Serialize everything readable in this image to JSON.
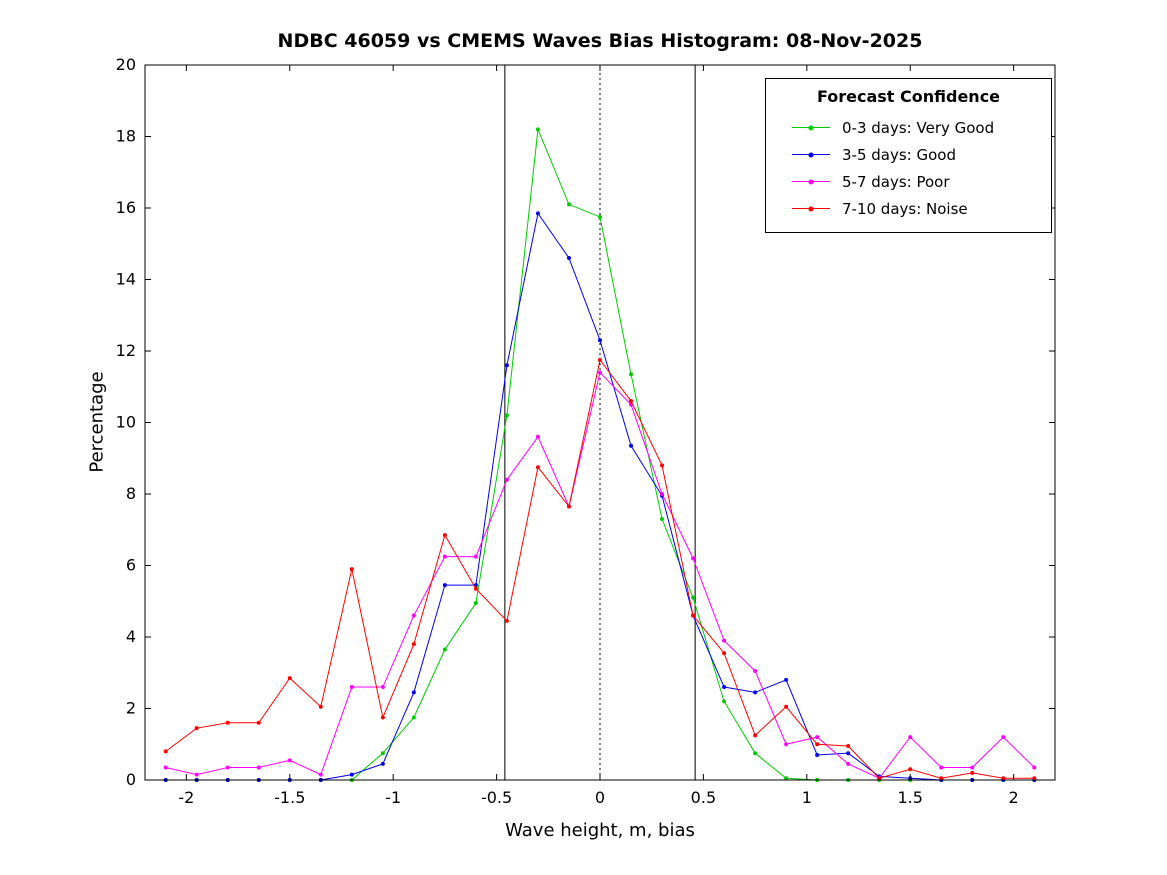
{
  "chart_data": {
    "type": "line",
    "title": "NDBC 46059 vs CMEMS Waves Bias Histogram: 08-Nov-2025",
    "xlabel": "Wave height, m, bias",
    "ylabel": "Percentage",
    "xlim": [
      -2.2,
      2.2
    ],
    "ylim": [
      0,
      20
    ],
    "grid": false,
    "xtick_values": [
      -2,
      -1.5,
      -1,
      -0.5,
      0,
      0.5,
      1,
      1.5,
      2
    ],
    "xtick_labels": [
      "-2",
      "-1.5",
      "-1",
      "-0.5",
      "0",
      "0.5",
      "1",
      "1.5",
      "2"
    ],
    "ytick_values": [
      0,
      2,
      4,
      6,
      8,
      10,
      12,
      14,
      16,
      18,
      20
    ],
    "ytick_labels": [
      "0",
      "2",
      "4",
      "6",
      "8",
      "10",
      "12",
      "14",
      "16",
      "18",
      "20"
    ],
    "reference_lines": [
      {
        "x": -0.46,
        "style": "solid",
        "color": "#000000"
      },
      {
        "x": 0,
        "style": "dotted",
        "color": "#000000"
      },
      {
        "x": 0.46,
        "style": "solid",
        "color": "#000000"
      }
    ],
    "legend": {
      "title": "Forecast Confidence",
      "position": "top-right"
    },
    "x": [
      -2.1,
      -1.95,
      -1.8,
      -1.65,
      -1.5,
      -1.35,
      -1.2,
      -1.05,
      -0.9,
      -0.75,
      -0.6,
      -0.45,
      -0.3,
      -0.15,
      0,
      0.15,
      0.3,
      0.45,
      0.6,
      0.75,
      0.9,
      1.05,
      1.2,
      1.35,
      1.5,
      1.65,
      1.8,
      1.95,
      2.1
    ],
    "series": [
      {
        "name": "0-3 days: Very Good",
        "color": "#00cc00",
        "values": [
          0,
          0,
          0,
          0,
          0,
          0,
          0,
          0.75,
          1.75,
          3.65,
          4.95,
          10.2,
          18.2,
          16.1,
          15.75,
          11.35,
          7.3,
          5.1,
          2.2,
          0.75,
          0.05,
          0,
          0,
          0,
          0,
          0,
          0,
          0,
          0
        ]
      },
      {
        "name": "3-5 days: Good",
        "color": "#0000ee",
        "values": [
          0,
          0,
          0,
          0,
          0,
          0,
          0.15,
          0.45,
          2.45,
          5.45,
          5.45,
          11.6,
          15.85,
          14.6,
          12.3,
          9.35,
          7.95,
          4.6,
          2.6,
          2.45,
          2.8,
          0.7,
          0.75,
          0.1,
          0.05,
          0,
          0,
          0,
          0
        ]
      },
      {
        "name": "5-7 days: Poor",
        "color": "#ff00ff",
        "values": [
          0.35,
          0.15,
          0.35,
          0.35,
          0.55,
          0.15,
          2.6,
          2.6,
          4.6,
          6.25,
          6.25,
          8.4,
          9.6,
          7.65,
          11.4,
          10.5,
          8.0,
          6.2,
          3.9,
          3.05,
          1.0,
          1.2,
          0.45,
          0.05,
          1.2,
          0.35,
          0.35,
          1.2,
          0.35
        ]
      },
      {
        "name": "7-10 days: Noise",
        "color": "#ff0000",
        "values": [
          0.8,
          1.45,
          1.6,
          1.6,
          2.85,
          2.05,
          5.9,
          1.75,
          3.8,
          6.85,
          5.35,
          4.45,
          8.75,
          7.65,
          11.75,
          10.6,
          8.8,
          4.6,
          3.55,
          1.25,
          2.05,
          1.0,
          0.95,
          0.05,
          0.3,
          0.05,
          0.2,
          0.05,
          0.05
        ]
      }
    ]
  }
}
